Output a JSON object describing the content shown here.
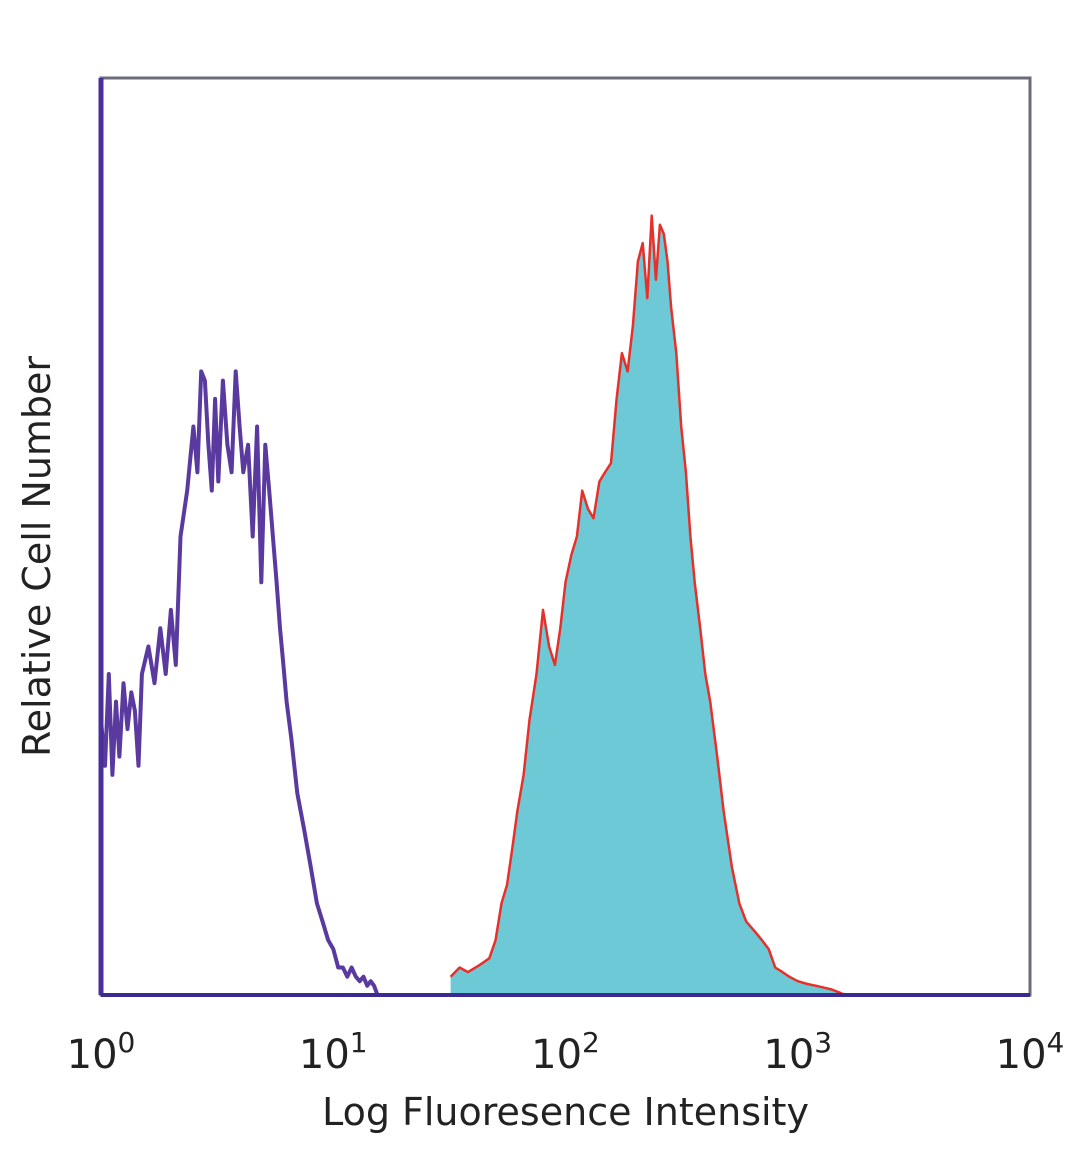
{
  "chart_data": {
    "type": "area",
    "title": "",
    "xlabel": "Log Fluoresence Intensity",
    "ylabel": "Relative Cell Number",
    "x_scale": "log",
    "xlim": [
      1,
      10000
    ],
    "ylim": [
      0,
      100
    ],
    "grid": false,
    "legend": "none",
    "x_ticks": [
      {
        "value": 1,
        "base": "10",
        "exp": "0"
      },
      {
        "value": 10,
        "base": "10",
        "exp": "1"
      },
      {
        "value": 100,
        "base": "10",
        "exp": "2"
      },
      {
        "value": 1000,
        "base": "10",
        "exp": "3"
      },
      {
        "value": 10000,
        "base": "10",
        "exp": "4"
      }
    ],
    "series": [
      {
        "style": "outline",
        "color": "#5b3aa0",
        "x": [
          1.0,
          1.04,
          1.08,
          1.12,
          1.16,
          1.2,
          1.25,
          1.3,
          1.35,
          1.4,
          1.45,
          1.5,
          1.6,
          1.7,
          1.8,
          1.9,
          2.0,
          2.1,
          2.2,
          2.35,
          2.5,
          2.6,
          2.7,
          2.8,
          2.9,
          3.0,
          3.1,
          3.2,
          3.35,
          3.5,
          3.65,
          3.8,
          3.95,
          4.1,
          4.3,
          4.5,
          4.7,
          4.9,
          5.1,
          5.3,
          5.5,
          5.7,
          5.9,
          6.1,
          6.3,
          6.6,
          7.0,
          7.5,
          8.0,
          8.5,
          9.0,
          9.5,
          10.0,
          10.5,
          11.0,
          11.5,
          12.0,
          12.5,
          13.0,
          13.5,
          14.0,
          14.5,
          15.0,
          15.5,
          16.0
        ],
        "y": [
          30,
          25,
          35,
          24,
          32,
          26,
          34,
          29,
          33,
          31,
          25,
          35,
          38,
          34,
          40,
          35,
          42,
          36,
          50,
          55,
          62,
          57,
          68,
          67,
          60,
          55,
          65,
          56,
          67,
          60,
          57,
          68,
          62,
          57,
          60,
          50,
          62,
          45,
          60,
          55,
          50,
          45,
          40,
          36,
          32,
          28,
          22,
          18,
          14,
          10,
          8,
          6,
          5,
          3,
          3,
          2,
          3,
          2,
          1.5,
          2,
          1,
          1.5,
          1,
          0,
          0
        ]
      },
      {
        "style": "filled",
        "color": "#6ec9d6",
        "outline_color": "#e8302a",
        "x": [
          32,
          35,
          38,
          41,
          44,
          47,
          50,
          53,
          56,
          59,
          62,
          66,
          70,
          75,
          80,
          85,
          90,
          95,
          100,
          106,
          112,
          118,
          125,
          132,
          140,
          148,
          157,
          166,
          175,
          185,
          195,
          205,
          215,
          225,
          235,
          245,
          255,
          265,
          275,
          285,
          300,
          315,
          330,
          345,
          360,
          380,
          400,
          420,
          450,
          480,
          520,
          560,
          600,
          650,
          700,
          750,
          800,
          860,
          920,
          1000,
          1100,
          1200,
          1300,
          1400,
          1500,
          1600
        ],
        "y": [
          2,
          3,
          2.5,
          3,
          3.5,
          4,
          6,
          10,
          12,
          16,
          20,
          24,
          30,
          35,
          42,
          38,
          36,
          40,
          45,
          48,
          50,
          55,
          53,
          52,
          56,
          57,
          58,
          65,
          70,
          68,
          73,
          80,
          82,
          76,
          85,
          78,
          84,
          83,
          80,
          75,
          70,
          62,
          57,
          50,
          45,
          40,
          35,
          32,
          26,
          20,
          14,
          10,
          8,
          7,
          6,
          5,
          3,
          2.5,
          2,
          1.5,
          1.2,
          1,
          0.8,
          0.6,
          0.3,
          0
        ]
      }
    ]
  }
}
